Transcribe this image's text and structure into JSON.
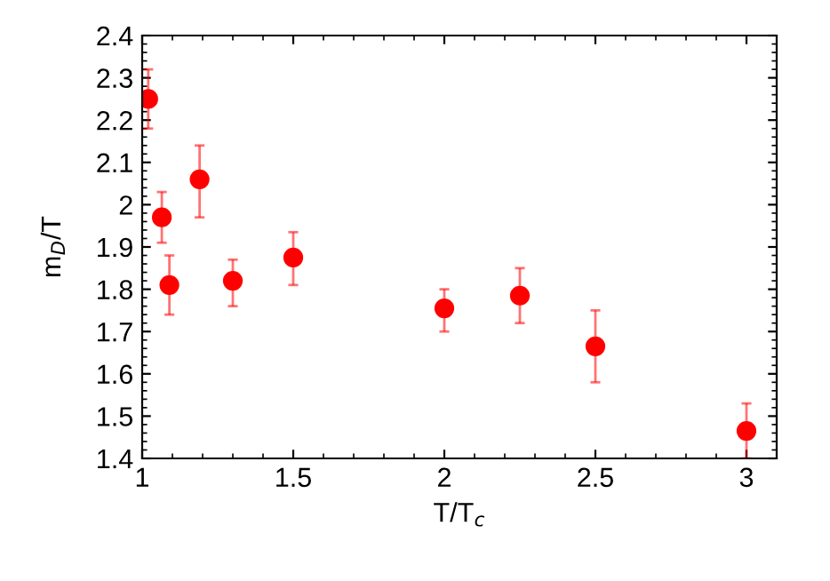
{
  "chart_data": {
    "type": "scatter",
    "xlabel": "T/T$_{c}$",
    "ylabel": "m$_{D}$/T",
    "x": [
      1.02,
      1.065,
      1.09,
      1.19,
      1.3,
      1.5,
      2.0,
      2.25,
      2.5,
      3.0
    ],
    "series": [
      {
        "color": "#ff0000",
        "values": [
          2.25,
          1.97,
          1.81,
          2.06,
          1.82,
          1.875,
          1.755,
          1.785,
          1.665,
          1.465
        ],
        "errors": [
          [
            2.18,
            2.32
          ],
          [
            1.91,
            2.03
          ],
          [
            1.74,
            1.88
          ],
          [
            1.97,
            2.14
          ],
          [
            1.76,
            1.87
          ],
          [
            1.81,
            1.935
          ],
          [
            1.7,
            1.8
          ],
          [
            1.72,
            1.85
          ],
          [
            1.58,
            1.75
          ],
          [
            1.4,
            1.53
          ]
        ]
      }
    ],
    "xlim": [
      1,
      3.1
    ],
    "ylim": [
      1.4,
      2.4
    ],
    "xticks": [
      1,
      1.5,
      2,
      2.5,
      3
    ],
    "yticks": [
      1.4,
      1.5,
      1.6,
      1.7,
      1.8,
      1.9,
      2,
      2.1,
      2.2,
      2.3,
      2.4
    ],
    "marker": "circle",
    "grid": false,
    "legend": false
  }
}
